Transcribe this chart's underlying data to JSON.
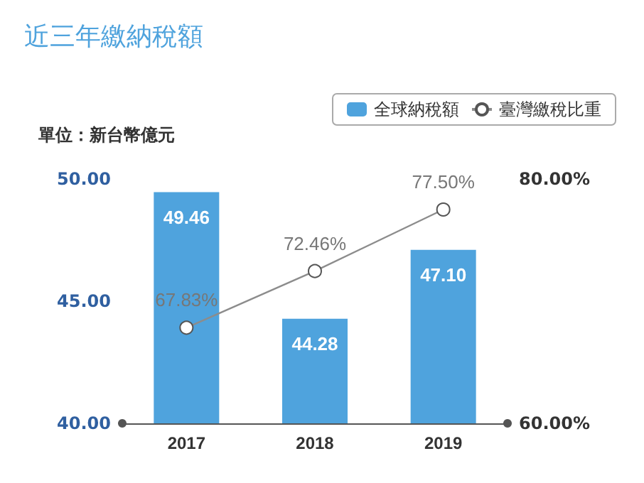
{
  "chart_data": {
    "type": "bar",
    "title": "近三年繳納稅額",
    "ylabel": "單位：新台幣億元",
    "categories": [
      "2017",
      "2018",
      "2019"
    ],
    "series": [
      {
        "name": "全球納稅額",
        "color": "#4fa3dd",
        "values": [
          49.46,
          44.28,
          47.1
        ],
        "value_labels": [
          "49.46",
          "44.28",
          "47.10"
        ]
      },
      {
        "name": "臺灣繳稅比重",
        "type": "line",
        "axis": "y2",
        "color": "#8c8c8c",
        "values": [
          67.83,
          72.46,
          77.5
        ],
        "value_labels": [
          "67.83%",
          "72.46%",
          "77.50%"
        ],
        "marker": "circle"
      }
    ],
    "ylim": [
      40,
      50
    ],
    "yticks": [
      {
        "value": 40,
        "label": "40.00"
      },
      {
        "value": 45,
        "label": "45.00"
      },
      {
        "value": 50,
        "label": "50.00"
      }
    ],
    "y2lim": [
      60,
      80
    ],
    "y2ticks": [
      {
        "value": 60,
        "label": "60.00%"
      },
      {
        "value": 80,
        "label": "80.00%"
      }
    ],
    "legend": "top right",
    "grid": false
  }
}
